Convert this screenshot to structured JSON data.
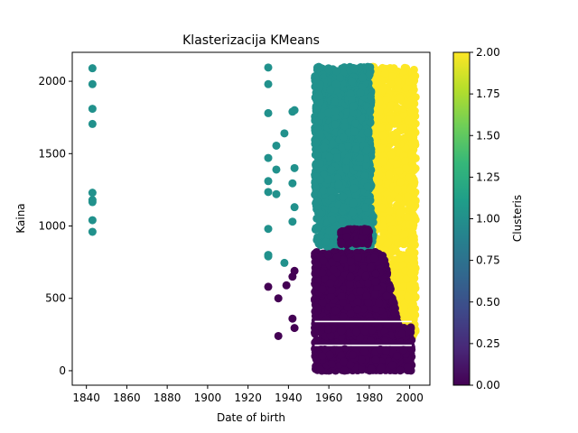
{
  "chart_data": {
    "type": "scatter",
    "title": "Klasterizacija KMeans",
    "xlabel": "Date of birth",
    "ylabel": "Kaina",
    "xlim": [
      1833,
      2010
    ],
    "ylim": [
      -100,
      2200
    ],
    "x_ticks": [
      1840,
      1860,
      1880,
      1900,
      1920,
      1940,
      1960,
      1980,
      2000
    ],
    "y_ticks": [
      0,
      500,
      1000,
      1500,
      2000
    ],
    "grid": false,
    "colorbar": {
      "label": "Clusteris",
      "range": [
        0,
        2
      ],
      "ticks": [
        "0.00",
        "0.25",
        "0.50",
        "0.75",
        "1.00",
        "1.25",
        "1.50",
        "1.75",
        "2.00"
      ],
      "colormap": [
        "#440154",
        "#482878",
        "#3e4989",
        "#31688e",
        "#26828e",
        "#1f9e89",
        "#35b779",
        "#6ece58",
        "#b5de2b",
        "#fde725"
      ]
    },
    "series": [
      {
        "cluster": 1,
        "color": "#21918c",
        "points": [
          [
            1843,
            2090
          ],
          [
            1843,
            1980
          ],
          [
            1843,
            1810
          ],
          [
            1843,
            1705
          ],
          [
            1843,
            1230
          ],
          [
            1843,
            1180
          ],
          [
            1843,
            1165
          ],
          [
            1843,
            1040
          ],
          [
            1843,
            960
          ],
          [
            1930,
            2095
          ],
          [
            1930,
            1980
          ],
          [
            1930,
            1780
          ],
          [
            1930,
            1470
          ],
          [
            1930,
            1310
          ],
          [
            1930,
            1235
          ],
          [
            1930,
            980
          ],
          [
            1930,
            800
          ],
          [
            1930,
            790
          ],
          [
            1934,
            1555
          ],
          [
            1934,
            1390
          ],
          [
            1934,
            1220
          ],
          [
            1938,
            1640
          ],
          [
            1938,
            745
          ],
          [
            1942,
            1790
          ],
          [
            1943,
            1800
          ],
          [
            1942,
            1295
          ],
          [
            1943,
            1400
          ],
          [
            1943,
            1130
          ],
          [
            1942,
            1030
          ]
        ],
        "dense_region": {
          "x_range": [
            1953,
            1983
          ],
          "y_range": [
            850,
            2100
          ]
        }
      },
      {
        "cluster": 0,
        "color": "#440154",
        "points": [
          [
            1930,
            580
          ],
          [
            1935,
            500
          ],
          [
            1935,
            240
          ],
          [
            1939,
            590
          ],
          [
            1942,
            650
          ],
          [
            1943,
            690
          ],
          [
            1942,
            360
          ],
          [
            1943,
            295
          ]
        ],
        "dense_region": {
          "x_range": [
            1953,
            2001
          ],
          "y_range": [
            0,
            980
          ]
        }
      },
      {
        "cluster": 2,
        "color": "#fde725",
        "points": [],
        "dense_region": {
          "x_range": [
            1978,
            2003
          ],
          "y_range": [
            190,
            2100
          ]
        }
      }
    ]
  }
}
